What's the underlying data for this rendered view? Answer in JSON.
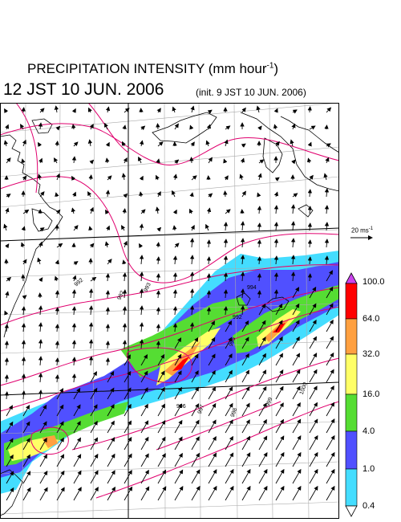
{
  "header": {
    "title_main": "PRECIPITATION INTENSITY (mm hour",
    "title_sup": "-1",
    "title_end": ")",
    "datetime": "12 JST 10 JUN. 2006",
    "init": "(init. 9 JST 10 JUN. 2006)"
  },
  "wind_scale": {
    "label_main": "20 ms",
    "label_sup": "-1"
  },
  "colorbar": {
    "levels": [
      "100.0",
      "64.0",
      "32.0",
      "16.0",
      "4.0",
      "1.0",
      "0.4"
    ],
    "colors": [
      "#ff0000",
      "#ffa040",
      "#ffff66",
      "#55dd33",
      "#5050ff",
      "#44ddff"
    ],
    "over_color": "#cc44ee",
    "under_color": "#ffffff"
  },
  "colors": {
    "isobar": "#e0006e",
    "coast": "#000000",
    "grid": "#999999"
  },
  "isobar_labels": [
    "992",
    "993",
    "994",
    "995",
    "996",
    "997",
    "998",
    "999",
    "1000"
  ]
}
